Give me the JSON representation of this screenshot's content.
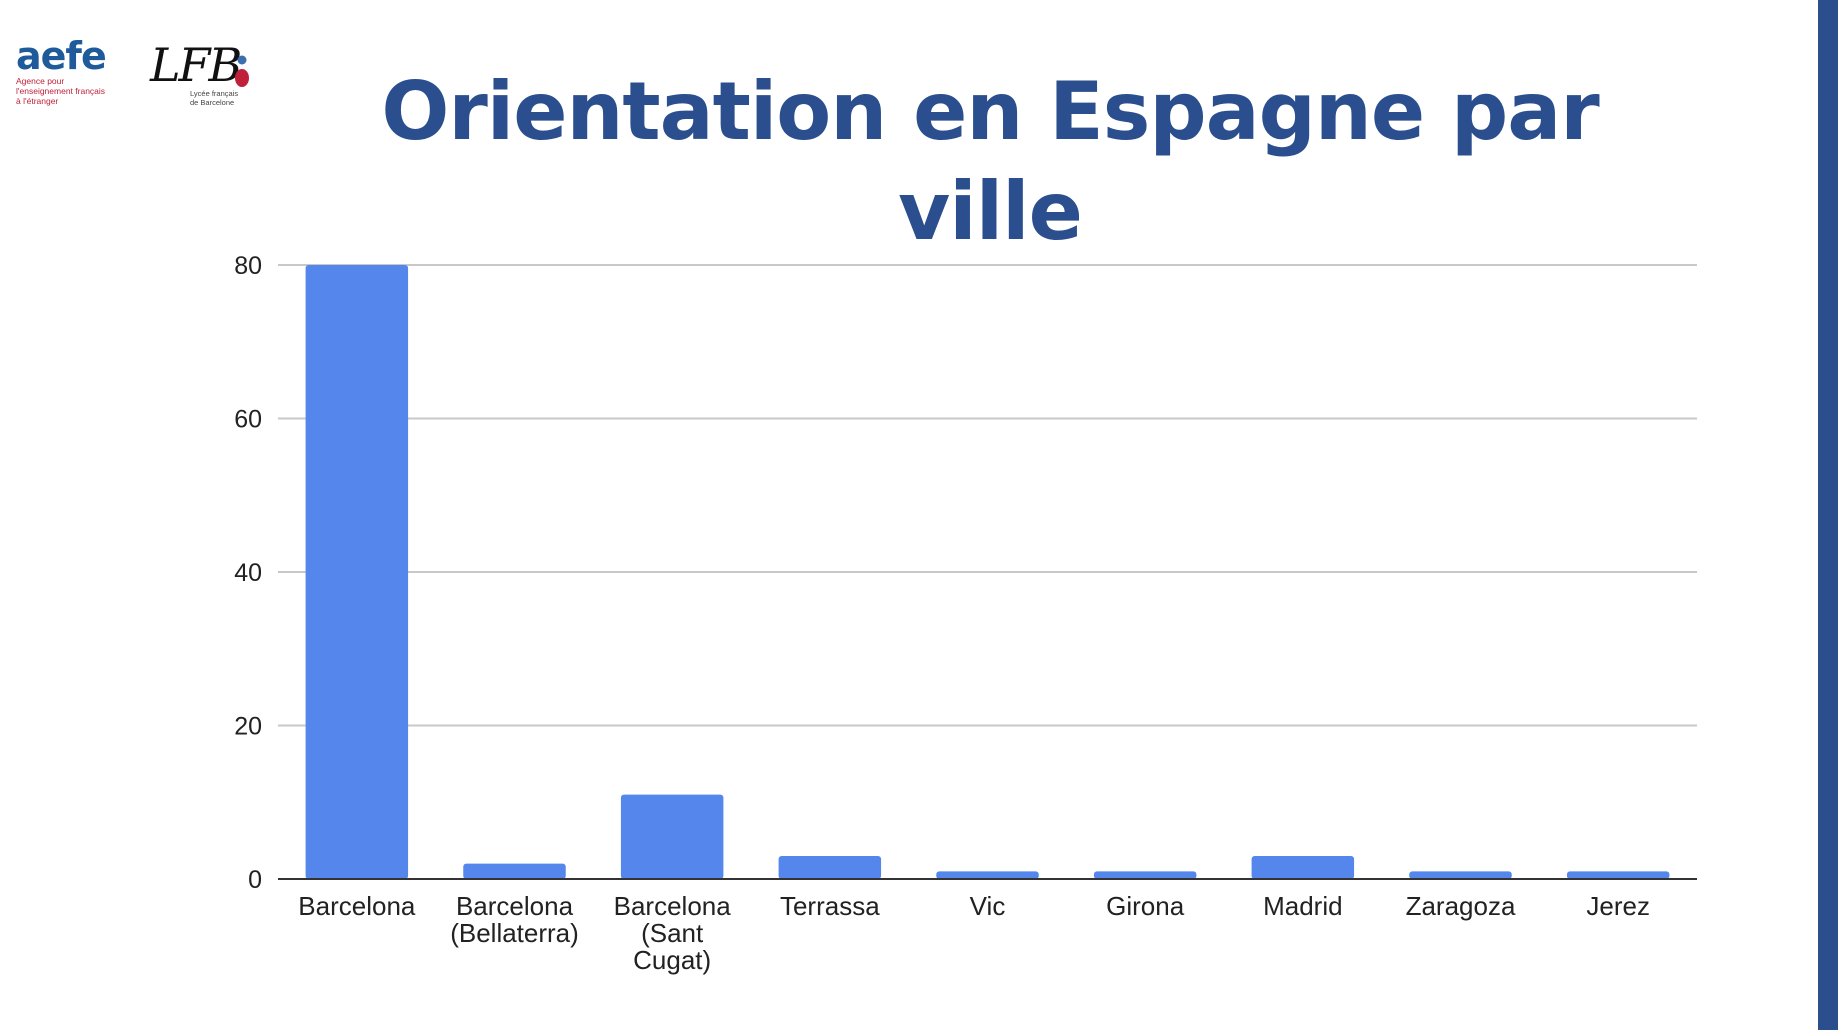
{
  "page": {
    "title": "Orientation en Espagne par ville",
    "title_color": "#2b4f8e",
    "accent_stripe_color": "#2a4f8c"
  },
  "logos": {
    "aefe": {
      "word": "aefe",
      "word_color": "#1f5a9a",
      "lines": [
        "Agence pour",
        "l'enseignement français",
        "à l'étranger"
      ],
      "lines_color": "#c0213a"
    },
    "lfb": {
      "word": "LFB",
      "subtitle_lines": [
        "Lycée français",
        "de Barcelone"
      ]
    }
  },
  "chart_data": {
    "type": "bar",
    "categories": [
      "Barcelona",
      "Barcelona (Bellaterra)",
      "Barcelona (Sant Cugat)",
      "Terrassa",
      "Vic",
      "Girona",
      "Madrid",
      "Zaragoza",
      "Jerez"
    ],
    "category_label_lines": [
      [
        "Barcelona"
      ],
      [
        "Barcelona",
        "(Bellaterra)"
      ],
      [
        "Barcelona",
        "(Sant",
        "Cugat)"
      ],
      [
        "Terrassa"
      ],
      [
        "Vic"
      ],
      [
        "Girona"
      ],
      [
        "Madrid"
      ],
      [
        "Zaragoza"
      ],
      [
        "Jerez"
      ]
    ],
    "values": [
      80,
      2,
      11,
      3,
      1,
      1,
      3,
      1,
      1
    ],
    "ylim": [
      0,
      80
    ],
    "yticks": [
      0,
      20,
      40,
      60,
      80
    ],
    "grid": true,
    "legend": "none",
    "bar_color": "#5486ec",
    "grid_color": "#c8c8c8",
    "axis_color": "#333333"
  }
}
